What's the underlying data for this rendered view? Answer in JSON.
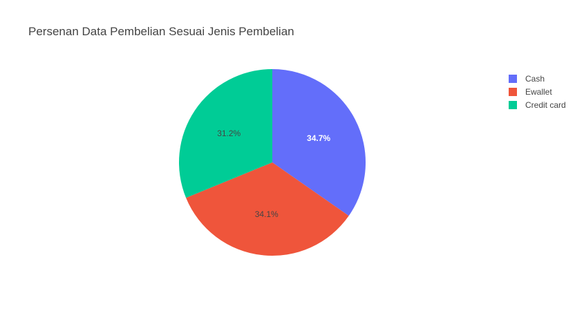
{
  "chart_data": {
    "type": "pie",
    "title": "Persenan Data Pembelian Sesuai Jenis Pembelian",
    "categories": [
      "Cash",
      "Ewallet",
      "Credit card"
    ],
    "values": [
      34.7,
      34.1,
      31.2
    ],
    "labels": [
      "34.7%",
      "34.1%",
      "31.2%"
    ],
    "colors": [
      "#636efa",
      "#ef553b",
      "#00cc96"
    ],
    "label_colors": [
      "#ffffff",
      "#444444",
      "#444444"
    ],
    "legend_position": "top-right",
    "direction": "clockwise",
    "start_angle": "12 o'clock"
  }
}
